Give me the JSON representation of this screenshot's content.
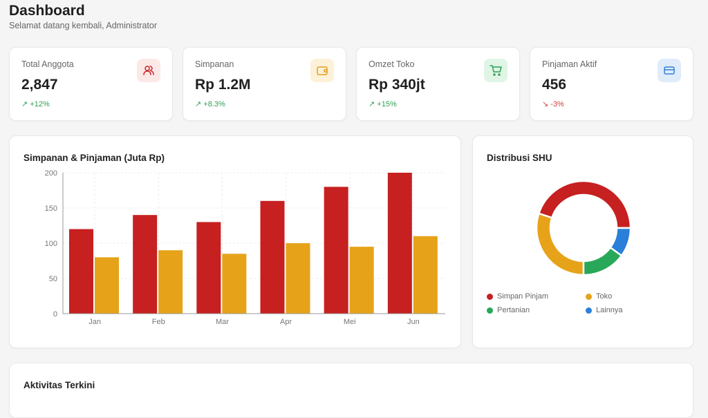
{
  "header": {
    "title": "Dashboard",
    "subtitle": "Selamat datang kembali, Administrator"
  },
  "stats": [
    {
      "label": "Total Anggota",
      "value": "2,847",
      "change": "+12%",
      "trend": "up",
      "icon": "users-icon",
      "color": "#c62828",
      "bg": "#fde8e8"
    },
    {
      "label": "Simpanan",
      "value": "Rp 1.2M",
      "change": "+8.3%",
      "trend": "up",
      "icon": "wallet-icon",
      "color": "#e0a020",
      "bg": "#fdf1d8"
    },
    {
      "label": "Omzet Toko",
      "value": "Rp 340jt",
      "change": "+15%",
      "trend": "up",
      "icon": "cart-icon",
      "color": "#2e9e55",
      "bg": "#e0f5e6"
    },
    {
      "label": "Pinjaman Aktif",
      "value": "456",
      "change": "-3%",
      "trend": "down",
      "icon": "credit-card-icon",
      "color": "#2f7fd6",
      "bg": "#e0ecfa"
    }
  ],
  "chart_data": [
    {
      "type": "bar",
      "title": "Simpanan & Pinjaman (Juta Rp)",
      "categories": [
        "Jan",
        "Feb",
        "Mar",
        "Apr",
        "Mei",
        "Jun"
      ],
      "series": [
        {
          "values": [
            120,
            140,
            130,
            160,
            180,
            200
          ],
          "color": "#c62020"
        },
        {
          "values": [
            80,
            90,
            85,
            100,
            95,
            110
          ],
          "color": "#e6a31a"
        }
      ],
      "ylim": [
        0,
        200
      ],
      "yticks": [
        0,
        50,
        100,
        150,
        200
      ],
      "grid": true
    },
    {
      "type": "pie",
      "title": "Distribusi SHU",
      "labels": [
        "Simpan Pinjam",
        "Toko",
        "Pertanian",
        "Lainnya"
      ],
      "values": [
        45,
        30,
        15,
        10
      ],
      "colors": [
        "#c62020",
        "#e6a31a",
        "#28a858",
        "#2a7fd8"
      ],
      "legend": "bottom"
    }
  ],
  "activity": {
    "title": "Aktivitas Terkini"
  }
}
